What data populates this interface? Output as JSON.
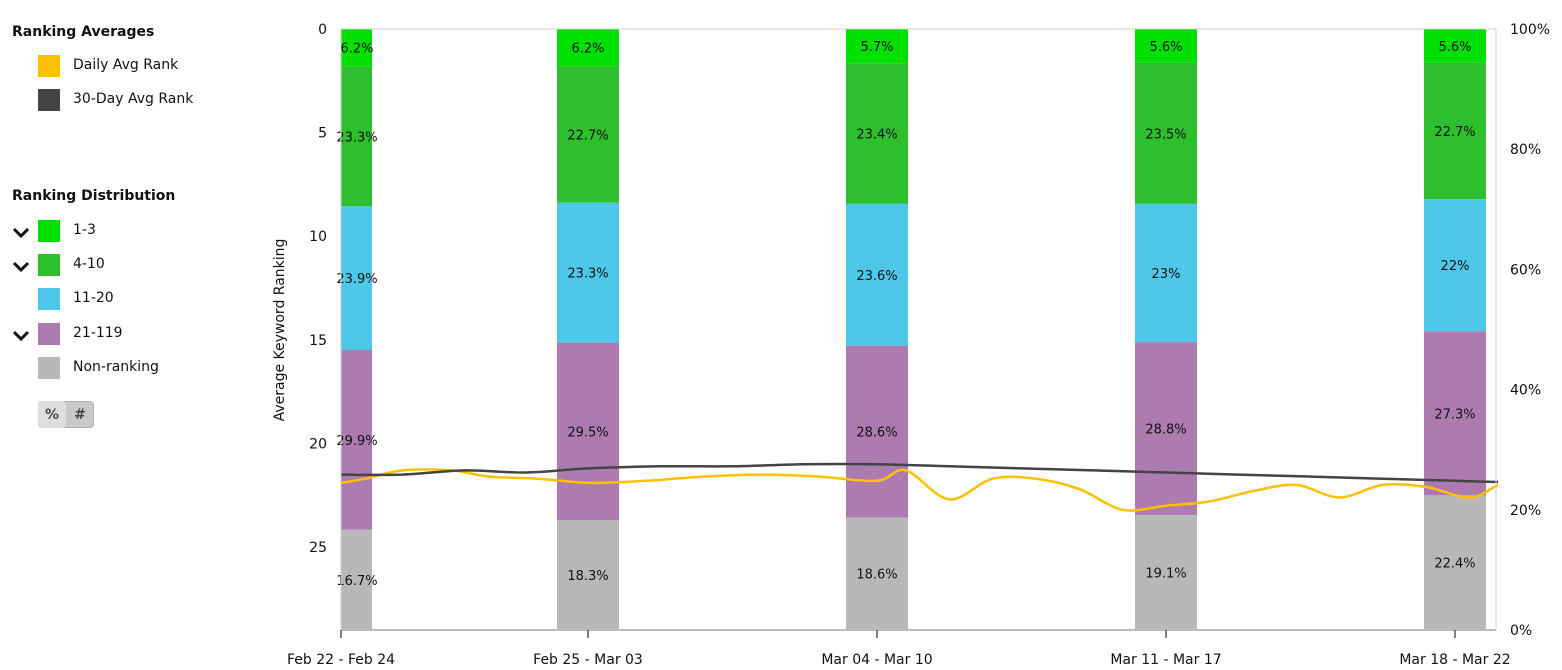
{
  "legend": {
    "averages_title": "Ranking Averages",
    "averages": [
      {
        "label": "Daily Avg Rank",
        "color": "#ffc000"
      },
      {
        "label": "30-Day Avg Rank",
        "color": "#444444"
      }
    ],
    "distribution_title": "Ranking Distribution",
    "distribution": [
      {
        "label": "1-3",
        "color": "#00e000",
        "chevron": true
      },
      {
        "label": "4-10",
        "color": "#2dbf2d",
        "chevron": true
      },
      {
        "label": "11-20",
        "color": "#4dc8e8",
        "chevron": false
      },
      {
        "label": "21-119",
        "color": "#ad7bb0",
        "chevron": true
      },
      {
        "label": "Non-ranking",
        "color": "#b8b8b8",
        "chevron": false
      }
    ],
    "toggle": {
      "percent": "%",
      "count": "#"
    }
  },
  "chart_data": {
    "type": "bar",
    "stacked": true,
    "categories": [
      "Feb 22 - Feb 24",
      "Feb 25 - Mar 03",
      "Mar 04 - Mar 10",
      "Mar 11 - Mar 17",
      "Mar 18 - Mar 22"
    ],
    "series": [
      {
        "name": "1-3",
        "color": "#00e000",
        "values": [
          6.2,
          6.2,
          5.7,
          5.6,
          5.6
        ],
        "labels": [
          "6.2%",
          "6.2%",
          "5.7%",
          "5.6%",
          "5.6%"
        ]
      },
      {
        "name": "4-10",
        "color": "#2dbf2d",
        "values": [
          23.3,
          22.7,
          23.4,
          23.5,
          22.7
        ],
        "labels": [
          "23.3%",
          "22.7%",
          "23.4%",
          "23.5%",
          "22.7%"
        ]
      },
      {
        "name": "11-20",
        "color": "#4dc8e8",
        "values": [
          23.9,
          23.3,
          23.6,
          23,
          22
        ],
        "labels": [
          "23.9%",
          "23.3%",
          "23.6%",
          "23%",
          "22%"
        ]
      },
      {
        "name": "21-119",
        "color": "#ad7bb0",
        "values": [
          29.9,
          29.5,
          28.6,
          28.8,
          27.3
        ],
        "labels": [
          "29.9%",
          "29.5%",
          "28.6%",
          "28.8%",
          "27.3%"
        ]
      },
      {
        "name": "Non-ranking",
        "color": "#b8b8b8",
        "values": [
          16.7,
          18.3,
          18.6,
          19.1,
          22.4
        ],
        "labels": [
          "16.7%",
          "18.3%",
          "18.6%",
          "19.1%",
          "22.4%"
        ]
      }
    ],
    "lines": [
      {
        "name": "Daily Avg Rank",
        "color": "#ffc000",
        "x": [
          0,
          0.1,
          0.25,
          0.45,
          0.6,
          0.8,
          1.0,
          1.2,
          1.4,
          1.6,
          1.8,
          2.0,
          2.1,
          2.25,
          2.4,
          2.55,
          2.7,
          2.85,
          3.0,
          3.15,
          3.3,
          3.45,
          3.6,
          3.75,
          3.9,
          4.05,
          4.15,
          4.25
        ],
        "y": [
          21.9,
          21.7,
          21.3,
          21.3,
          21.6,
          21.7,
          21.9,
          21.8,
          21.6,
          21.5,
          21.6,
          21.8,
          21.3,
          22.7,
          21.7,
          21.7,
          22.2,
          23.2,
          23.0,
          22.8,
          22.3,
          22.0,
          22.6,
          22.0,
          22.1,
          22.6,
          22.0,
          21.4
        ]
      },
      {
        "name": "30-Day Avg Rank",
        "color": "#444444",
        "x": [
          0,
          0.25,
          0.5,
          0.75,
          1.0,
          1.25,
          1.5,
          1.75,
          2.0,
          2.25,
          2.5,
          2.75,
          3.0,
          3.25,
          3.5,
          3.75,
          4.0,
          4.25
        ],
        "y": [
          21.5,
          21.5,
          21.3,
          21.4,
          21.2,
          21.1,
          21.1,
          21.0,
          21.0,
          21.1,
          21.2,
          21.3,
          21.4,
          21.5,
          21.6,
          21.7,
          21.8,
          21.9
        ]
      }
    ],
    "ylabel": "Average Keyword Ranking",
    "ylim": [
      29,
      0
    ],
    "yticks": [
      0,
      5,
      10,
      15,
      20,
      25
    ],
    "y2lim": [
      0,
      100
    ],
    "y2ticks": [
      0,
      20,
      40,
      60,
      80,
      100
    ],
    "y2ticklabels": [
      "0%",
      "20%",
      "40%",
      "60%",
      "80%",
      "100%"
    ]
  }
}
